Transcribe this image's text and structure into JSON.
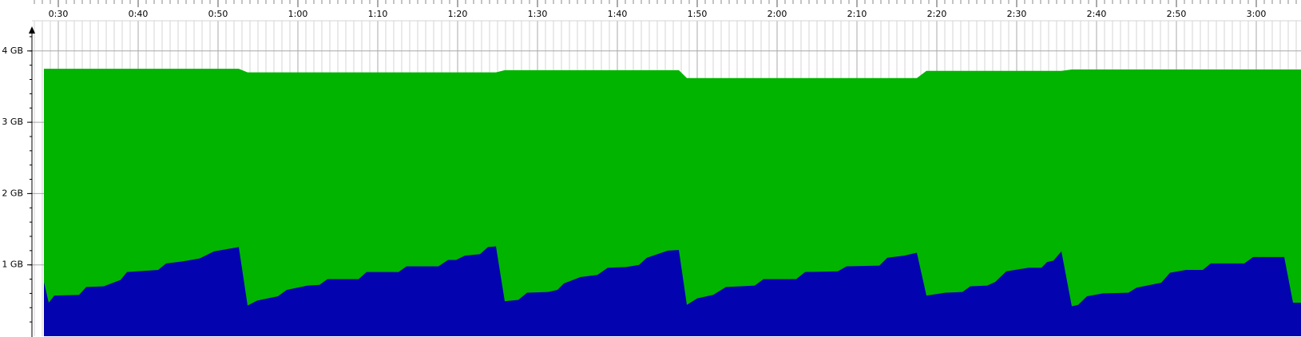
{
  "chart_data": {
    "type": "area",
    "x": [
      28.2,
      28.8,
      29.5,
      32.6,
      33.5,
      35.7,
      37.8,
      38.6,
      42.5,
      43.5,
      45.6,
      47.7,
      49.5,
      52.6,
      53.7,
      54.9,
      57.5,
      58.6,
      61.2,
      62.7,
      63.7,
      67.6,
      68.6,
      72.6,
      73.6,
      77.6,
      78.8,
      79.8,
      80.9,
      82.8,
      83.8,
      84.8,
      85.9,
      87.6,
      88.7,
      91.3,
      92.5,
      93.3,
      95.4,
      97.5,
      98.8,
      101.1,
      102.7,
      103.7,
      106.3,
      107.7,
      108.7,
      110.0,
      112.0,
      113.6,
      117.2,
      118.3,
      122.4,
      123.5,
      127.6,
      128.7,
      132.8,
      133.8,
      135.9,
      137.5,
      138.7,
      141.1,
      143.2,
      144.2,
      146.3,
      147.3,
      148.7,
      151.5,
      153.1,
      153.8,
      154.6,
      155.6,
      156.9,
      157.7,
      158.8,
      160.8,
      164.0,
      165.0,
      168.1,
      169.2,
      171.2,
      173.3,
      174.3,
      178.5,
      179.6,
      183.5,
      184.6,
      185.6
    ],
    "series": [
      {
        "color": "#00b400",
        "values": [
          3.75,
          3.75,
          3.75,
          3.75,
          3.75,
          3.75,
          3.75,
          3.75,
          3.75,
          3.75,
          3.75,
          3.75,
          3.75,
          3.75,
          3.7,
          3.7,
          3.7,
          3.7,
          3.7,
          3.7,
          3.7,
          3.7,
          3.7,
          3.7,
          3.7,
          3.7,
          3.7,
          3.7,
          3.7,
          3.7,
          3.7,
          3.7,
          3.73,
          3.73,
          3.73,
          3.73,
          3.73,
          3.73,
          3.73,
          3.73,
          3.73,
          3.73,
          3.73,
          3.73,
          3.73,
          3.73,
          3.62,
          3.62,
          3.62,
          3.62,
          3.62,
          3.62,
          3.62,
          3.62,
          3.62,
          3.62,
          3.62,
          3.62,
          3.62,
          3.62,
          3.72,
          3.72,
          3.72,
          3.72,
          3.72,
          3.72,
          3.72,
          3.72,
          3.72,
          3.72,
          3.72,
          3.72,
          3.74,
          3.74,
          3.74,
          3.74,
          3.74,
          3.74,
          3.74,
          3.74,
          3.74,
          3.74,
          3.74,
          3.74,
          3.74,
          3.74,
          3.74,
          3.74
        ]
      },
      {
        "color": "#0303b0",
        "values": [
          0.76,
          0.47,
          0.57,
          0.58,
          0.69,
          0.7,
          0.79,
          0.9,
          0.93,
          1.02,
          1.05,
          1.09,
          1.19,
          1.25,
          0.43,
          0.5,
          0.56,
          0.65,
          0.71,
          0.72,
          0.8,
          0.8,
          0.9,
          0.9,
          0.98,
          0.98,
          1.07,
          1.07,
          1.13,
          1.15,
          1.25,
          1.26,
          0.49,
          0.51,
          0.61,
          0.62,
          0.65,
          0.74,
          0.83,
          0.86,
          0.96,
          0.97,
          1.0,
          1.1,
          1.2,
          1.21,
          0.44,
          0.53,
          0.58,
          0.69,
          0.71,
          0.8,
          0.8,
          0.9,
          0.91,
          0.98,
          0.99,
          1.1,
          1.13,
          1.17,
          0.57,
          0.61,
          0.62,
          0.7,
          0.71,
          0.76,
          0.91,
          0.96,
          0.96,
          1.04,
          1.06,
          1.19,
          0.42,
          0.44,
          0.56,
          0.6,
          0.61,
          0.68,
          0.75,
          0.89,
          0.93,
          0.93,
          1.02,
          1.02,
          1.11,
          1.11,
          0.47,
          0.47
        ]
      }
    ],
    "xlim": [
      26.7,
      185.6
    ],
    "xticks": [
      {
        "value": 30,
        "label": "0:30"
      },
      {
        "value": 40,
        "label": "0:40"
      },
      {
        "value": 50,
        "label": "0:50"
      },
      {
        "value": 60,
        "label": "1:00"
      },
      {
        "value": 70,
        "label": "1:10"
      },
      {
        "value": 80,
        "label": "1:20"
      },
      {
        "value": 90,
        "label": "1:30"
      },
      {
        "value": 100,
        "label": "1:40"
      },
      {
        "value": 110,
        "label": "1:50"
      },
      {
        "value": 120,
        "label": "2:00"
      },
      {
        "value": 130,
        "label": "2:10"
      },
      {
        "value": 140,
        "label": "2:20"
      },
      {
        "value": 150,
        "label": "2:30"
      },
      {
        "value": 160,
        "label": "2:40"
      },
      {
        "value": 170,
        "label": "2:50"
      },
      {
        "value": 180,
        "label": "3:00"
      }
    ],
    "ylim": [
      0,
      4.3
    ],
    "yticks": [
      {
        "value": 1,
        "label": "1 GB"
      },
      {
        "value": 2,
        "label": "2 GB"
      },
      {
        "value": 3,
        "label": "3 GB"
      },
      {
        "value": 4,
        "label": "4 GB"
      }
    ],
    "grid": true
  }
}
